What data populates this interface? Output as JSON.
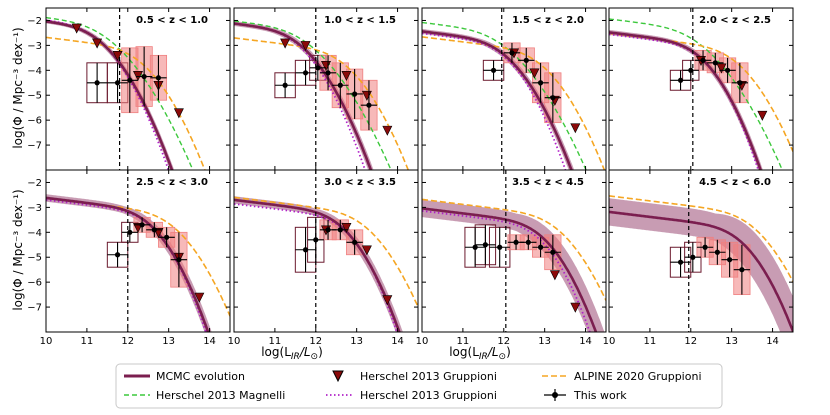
{
  "figure": {
    "ylabel": "log(Φ / Mpc⁻³ dex⁻¹)",
    "xlabel_main": "log(L",
    "xlabel_sub": "IR",
    "xlabel_mid": "/L",
    "xlabel_sun": "⊙",
    "xlabel_end": ")"
  },
  "legend": {
    "mcmc": "MCMC evolution",
    "magnelli": "Herschel 2013 Magnelli",
    "gruppioni_pts": "Herschel 2013 Gruppioni",
    "gruppioni_line": "Herschel 2013 Gruppioni",
    "alpine": "ALPINE 2020 Gruppioni",
    "thiswork": "This work"
  },
  "colors": {
    "mcmc": "#7b1e4f",
    "mcmc_band": "#9b4a74",
    "magnelli": "#3cc83c",
    "gruppioni_line": "#b020c8",
    "gruppioni_marker": "#8b0a0a",
    "alpine": "#f5a623",
    "box_red": "#f08080",
    "box_dark": "#6b1a2e"
  },
  "chart_data": [
    {
      "type": "line",
      "title": "0.5 < z < 1.0",
      "xlim": [
        10,
        14.5
      ],
      "ylim": [
        -8,
        -1.5
      ],
      "xlabel": "",
      "ylabel": "log(Φ / Mpc⁻³ dex⁻¹)",
      "xticks": [
        10,
        11,
        12,
        13,
        14
      ],
      "yticks": [
        -2,
        -3,
        -4,
        -5,
        -6,
        -7
      ],
      "vline": 11.8,
      "mcmc": {
        "phi": -2.15,
        "lstar": 10.6,
        "alpha": 1.2,
        "sigma": 0.5
      },
      "mcmc_band": 0.08,
      "magnelli": {
        "phi": -2.0,
        "lstar": 10.6,
        "alpha": 1.2,
        "sigma": 0.6
      },
      "gruppioni_line": {
        "phi": -2.1,
        "lstar": 10.6,
        "alpha": 1.2,
        "sigma": 0.48
      },
      "alpine": {
        "phi": -3.0,
        "lstar": 11.6,
        "alpha": 1.2,
        "sigma": 0.5
      },
      "gruppioni_points": [
        [
          10.75,
          -2.3
        ],
        [
          11.25,
          -2.9
        ],
        [
          11.75,
          -3.4
        ],
        [
          12.25,
          -4.2
        ],
        [
          12.75,
          -4.6
        ],
        [
          13.25,
          -5.7
        ]
      ],
      "this_work": [
        {
          "x": 11.25,
          "y": -4.5,
          "xe": 0.25,
          "ye": 0.8,
          "box": "dark"
        },
        {
          "x": 11.75,
          "y": -4.5,
          "xe": 0.25,
          "ye": 0.8,
          "box": "dark"
        },
        {
          "x": 12.05,
          "y": -4.4,
          "xe": 0.2,
          "ye": 1.3,
          "box": "red"
        },
        {
          "x": 12.4,
          "y": -4.25,
          "xe": 0.2,
          "ye": 1.2,
          "box": "red"
        },
        {
          "x": 12.75,
          "y": -4.3,
          "xe": 0.2,
          "ye": 0.9,
          "box": "red"
        }
      ]
    },
    {
      "type": "line",
      "title": "1.0 < z < 1.5",
      "xlim": [
        10,
        14.5
      ],
      "ylim": [
        -8,
        -1.5
      ],
      "xlabel": "",
      "ylabel": "",
      "xticks": [
        10,
        11,
        12,
        13,
        14
      ],
      "yticks": [
        -2,
        -3,
        -4,
        -5,
        -6,
        -7
      ],
      "vline": 12.0,
      "mcmc": {
        "phi": -2.3,
        "lstar": 10.9,
        "alpha": 1.2,
        "sigma": 0.5
      },
      "mcmc_band": 0.1,
      "magnelli": {
        "phi": -2.2,
        "lstar": 10.9,
        "alpha": 1.2,
        "sigma": 0.6
      },
      "gruppioni_line": {
        "phi": -2.3,
        "lstar": 10.9,
        "alpha": 1.2,
        "sigma": 0.47
      },
      "alpine": {
        "phi": -3.1,
        "lstar": 12.0,
        "alpha": 1.2,
        "sigma": 0.5
      },
      "gruppioni_points": [
        [
          11.25,
          -2.9
        ],
        [
          11.75,
          -3.0
        ],
        [
          12.25,
          -3.8
        ],
        [
          12.75,
          -4.2
        ],
        [
          13.25,
          -5.0
        ],
        [
          13.75,
          -6.4
        ]
      ],
      "this_work": [
        {
          "x": 11.25,
          "y": -4.6,
          "xe": 0.25,
          "ye": 0.5,
          "box": "dark"
        },
        {
          "x": 11.75,
          "y": -4.1,
          "xe": 0.25,
          "ye": 0.5,
          "box": "dark"
        },
        {
          "x": 12.05,
          "y": -3.9,
          "xe": 0.2,
          "ye": 0.5,
          "box": "dark"
        },
        {
          "x": 12.3,
          "y": -4.1,
          "xe": 0.2,
          "ye": 0.7,
          "box": "red"
        },
        {
          "x": 12.6,
          "y": -4.6,
          "xe": 0.2,
          "ye": 0.9,
          "box": "red"
        },
        {
          "x": 12.95,
          "y": -4.95,
          "xe": 0.2,
          "ye": 1.0,
          "box": "red"
        },
        {
          "x": 13.3,
          "y": -5.4,
          "xe": 0.2,
          "ye": 1.0,
          "box": "red"
        }
      ]
    },
    {
      "type": "line",
      "title": "1.5 < z < 2.0",
      "xlim": [
        10,
        14.5
      ],
      "ylim": [
        -8,
        -1.5
      ],
      "xlabel": "",
      "ylabel": "",
      "xticks": [
        10,
        11,
        12,
        13,
        14
      ],
      "yticks": [
        -2,
        -3,
        -4,
        -5,
        -6,
        -7
      ],
      "vline": 11.95,
      "mcmc": {
        "phi": -2.7,
        "lstar": 11.3,
        "alpha": 1.2,
        "sigma": 0.5
      },
      "mcmc_band": 0.1,
      "magnelli": {
        "phi": -2.3,
        "lstar": 11.1,
        "alpha": 1.2,
        "sigma": 0.6
      },
      "gruppioni_line": {
        "phi": -2.8,
        "lstar": 11.4,
        "alpha": 1.2,
        "sigma": 0.45
      },
      "alpine": {
        "phi": -3.1,
        "lstar": 12.2,
        "alpha": 1.2,
        "sigma": 0.5
      },
      "gruppioni_points": [
        [
          12.25,
          -3.3
        ],
        [
          12.75,
          -4.1
        ],
        [
          13.25,
          -5.2
        ],
        [
          13.75,
          -6.3
        ]
      ],
      "this_work": [
        {
          "x": 11.75,
          "y": -4.0,
          "xe": 0.25,
          "ye": 0.4,
          "box": "dark"
        },
        {
          "x": 12.2,
          "y": -3.3,
          "xe": 0.2,
          "ye": 0.4,
          "box": "red"
        },
        {
          "x": 12.55,
          "y": -3.6,
          "xe": 0.2,
          "ye": 0.5,
          "box": "red"
        },
        {
          "x": 12.9,
          "y": -4.5,
          "xe": 0.2,
          "ye": 0.8,
          "box": "red"
        },
        {
          "x": 13.2,
          "y": -5.1,
          "xe": 0.2,
          "ye": 1.0,
          "box": "red"
        }
      ]
    },
    {
      "type": "line",
      "title": "2.0 < z < 2.5",
      "xlim": [
        10,
        14.5
      ],
      "ylim": [
        -8,
        -1.5
      ],
      "xlabel": "",
      "ylabel": "",
      "xticks": [
        10,
        11,
        12,
        13,
        14
      ],
      "yticks": [
        -2,
        -3,
        -4,
        -5,
        -6,
        -7
      ],
      "vline": 12.05,
      "mcmc": {
        "phi": -2.8,
        "lstar": 11.6,
        "alpha": 1.2,
        "sigma": 0.45
      },
      "mcmc_band": 0.1,
      "magnelli": {
        "phi": -2.2,
        "lstar": 11.3,
        "alpha": 1.2,
        "sigma": 0.6
      },
      "gruppioni_line": {
        "phi": -2.9,
        "lstar": 11.7,
        "alpha": 1.2,
        "sigma": 0.42
      },
      "alpine": {
        "phi": -3.0,
        "lstar": 12.4,
        "alpha": 1.2,
        "sigma": 0.5
      },
      "gruppioni_points": [
        [
          12.25,
          -3.6
        ],
        [
          12.75,
          -3.9
        ],
        [
          13.25,
          -4.6
        ],
        [
          13.75,
          -5.8
        ]
      ],
      "this_work": [
        {
          "x": 11.75,
          "y": -4.4,
          "xe": 0.25,
          "ye": 0.4,
          "box": "dark"
        },
        {
          "x": 12.0,
          "y": -4.0,
          "xe": 0.2,
          "ye": 0.4,
          "box": "dark"
        },
        {
          "x": 12.3,
          "y": -3.6,
          "xe": 0.2,
          "ye": 0.4,
          "box": "red"
        },
        {
          "x": 12.6,
          "y": -3.7,
          "xe": 0.2,
          "ye": 0.4,
          "box": "red"
        },
        {
          "x": 12.9,
          "y": -4.0,
          "xe": 0.2,
          "ye": 0.5,
          "box": "red"
        },
        {
          "x": 13.2,
          "y": -4.5,
          "xe": 0.2,
          "ye": 0.8,
          "box": "red"
        }
      ]
    },
    {
      "type": "line",
      "title": "2.5 < z < 3.0",
      "xlim": [
        10,
        14.5
      ],
      "ylim": [
        -8,
        -1.5
      ],
      "xlabel": "",
      "ylabel": "log(Φ / Mpc⁻³ dex⁻¹)",
      "xticks": [
        10,
        11,
        12,
        13,
        14
      ],
      "yticks": [
        -2,
        -3,
        -4,
        -5,
        -6,
        -7
      ],
      "vline": 12.0,
      "mcmc": {
        "phi": -3.0,
        "lstar": 11.9,
        "alpha": 1.2,
        "sigma": 0.45
      },
      "mcmc_band": 0.15,
      "magnelli": null,
      "gruppioni_line": {
        "phi": -3.1,
        "lstar": 12.0,
        "alpha": 1.2,
        "sigma": 0.42
      },
      "alpine": {
        "phi": -3.1,
        "lstar": 12.4,
        "alpha": 1.2,
        "sigma": 0.5
      },
      "gruppioni_points": [
        [
          12.25,
          -3.8
        ],
        [
          12.75,
          -4.0
        ],
        [
          13.25,
          -5.0
        ],
        [
          13.75,
          -6.6
        ]
      ],
      "this_work": [
        {
          "x": 11.75,
          "y": -4.9,
          "xe": 0.25,
          "ye": 0.5,
          "box": "dark"
        },
        {
          "x": 12.05,
          "y": -4.0,
          "xe": 0.2,
          "ye": 0.4,
          "box": "dark"
        },
        {
          "x": 12.35,
          "y": -3.7,
          "xe": 0.2,
          "ye": 0.3,
          "box": "red"
        },
        {
          "x": 12.65,
          "y": -3.9,
          "xe": 0.2,
          "ye": 0.3,
          "box": "red"
        },
        {
          "x": 12.95,
          "y": -4.2,
          "xe": 0.2,
          "ye": 0.4,
          "box": "red"
        },
        {
          "x": 13.25,
          "y": -5.1,
          "xe": 0.2,
          "ye": 1.1,
          "box": "red"
        }
      ]
    },
    {
      "type": "line",
      "title": "3.0 < z < 3.5",
      "xlim": [
        10,
        14.5
      ],
      "ylim": [
        -8,
        -1.5
      ],
      "xlabel": "",
      "ylabel": "",
      "xticks": [
        10,
        11,
        12,
        13,
        14
      ],
      "yticks": [
        -2,
        -3,
        -4,
        -5,
        -6,
        -7
      ],
      "vline": 12.0,
      "mcmc": {
        "phi": -3.1,
        "lstar": 12.0,
        "alpha": 1.2,
        "sigma": 0.45
      },
      "mcmc_band": 0.15,
      "magnelli": null,
      "gruppioni_line": {
        "phi": -3.3,
        "lstar": 12.2,
        "alpha": 1.2,
        "sigma": 0.4
      },
      "alpine": {
        "phi": -3.1,
        "lstar": 12.5,
        "alpha": 1.2,
        "sigma": 0.5
      },
      "gruppioni_points": [
        [
          12.25,
          -3.9
        ],
        [
          12.75,
          -3.8
        ],
        [
          13.25,
          -4.7
        ],
        [
          13.75,
          -6.7
        ]
      ],
      "this_work": [
        {
          "x": 11.75,
          "y": -4.7,
          "xe": 0.25,
          "ye": 0.9,
          "box": "dark"
        },
        {
          "x": 12.0,
          "y": -4.3,
          "xe": 0.2,
          "ye": 0.9,
          "box": "dark"
        },
        {
          "x": 12.3,
          "y": -3.9,
          "xe": 0.2,
          "ye": 0.4,
          "box": "red"
        },
        {
          "x": 12.6,
          "y": -3.9,
          "xe": 0.2,
          "ye": 0.4,
          "box": "red"
        },
        {
          "x": 12.95,
          "y": -4.4,
          "xe": 0.2,
          "ye": 0.5,
          "box": "red"
        }
      ]
    },
    {
      "type": "line",
      "title": "3.5 < z < 4.5",
      "xlim": [
        10,
        14.5
      ],
      "ylim": [
        -8,
        -1.5
      ],
      "xlabel": "",
      "ylabel": "",
      "xticks": [
        10,
        11,
        12,
        13,
        14
      ],
      "yticks": [
        -2,
        -3,
        -4,
        -5,
        -6,
        -7
      ],
      "vline": 12.05,
      "mcmc": {
        "phi": -3.5,
        "lstar": 12.3,
        "alpha": 1.2,
        "sigma": 0.45
      },
      "mcmc_band": 0.35,
      "magnelli": null,
      "gruppioni_line": {
        "phi": -3.6,
        "lstar": 12.3,
        "alpha": 1.2,
        "sigma": 0.42
      },
      "alpine": {
        "phi": -3.2,
        "lstar": 12.6,
        "alpha": 1.2,
        "sigma": 0.5
      },
      "gruppioni_points": [
        [
          13.25,
          -5.7
        ],
        [
          13.75,
          -7.0
        ]
      ],
      "this_work": [
        {
          "x": 11.3,
          "y": -4.6,
          "xe": 0.25,
          "ye": 0.8,
          "box": "dark"
        },
        {
          "x": 11.55,
          "y": -4.5,
          "xe": 0.25,
          "ye": 0.8,
          "box": "dark"
        },
        {
          "x": 11.9,
          "y": -4.6,
          "xe": 0.25,
          "ye": 0.8,
          "box": "dark"
        },
        {
          "x": 12.3,
          "y": -4.4,
          "xe": 0.2,
          "ye": 0.3,
          "box": "red"
        },
        {
          "x": 12.6,
          "y": -4.4,
          "xe": 0.2,
          "ye": 0.3,
          "box": "red"
        },
        {
          "x": 12.9,
          "y": -4.6,
          "xe": 0.2,
          "ye": 0.4,
          "box": "red"
        },
        {
          "x": 13.2,
          "y": -4.8,
          "xe": 0.2,
          "ye": 0.7,
          "box": "red"
        }
      ]
    },
    {
      "type": "line",
      "title": "4.5 < z < 6.0",
      "xlim": [
        10,
        14.5
      ],
      "ylim": [
        -8,
        -1.5
      ],
      "xlabel": "",
      "ylabel": "",
      "xticks": [
        10,
        11,
        12,
        13,
        14
      ],
      "yticks": [
        -2,
        -3,
        -4,
        -5,
        -6,
        -7
      ],
      "vline": 11.95,
      "mcmc": {
        "phi": -3.7,
        "lstar": 12.6,
        "alpha": 1.2,
        "sigma": 0.45
      },
      "mcmc_band": 0.55,
      "magnelli": null,
      "gruppioni_line": null,
      "alpine": {
        "phi": -3.1,
        "lstar": 12.8,
        "alpha": 1.2,
        "sigma": 0.5
      },
      "gruppioni_points": [],
      "this_work": [
        {
          "x": 11.75,
          "y": -5.2,
          "xe": 0.25,
          "ye": 0.6,
          "box": "dark"
        },
        {
          "x": 12.05,
          "y": -5.0,
          "xe": 0.2,
          "ye": 0.6,
          "box": "dark"
        },
        {
          "x": 12.35,
          "y": -4.6,
          "xe": 0.2,
          "ye": 0.4,
          "box": "red"
        },
        {
          "x": 12.65,
          "y": -4.8,
          "xe": 0.2,
          "ye": 0.5,
          "box": "red"
        },
        {
          "x": 12.95,
          "y": -5.1,
          "xe": 0.2,
          "ye": 0.7,
          "box": "red"
        },
        {
          "x": 13.25,
          "y": -5.5,
          "xe": 0.2,
          "ye": 1.0,
          "box": "red"
        }
      ]
    }
  ]
}
